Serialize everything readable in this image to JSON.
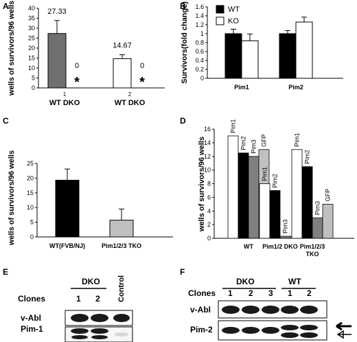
{
  "panels": {
    "A": "A",
    "B": "B",
    "C": "C",
    "D": "D",
    "E": "E",
    "F": "F"
  },
  "chart_data": [
    {
      "panel": "A",
      "type": "bar",
      "ylabel": "wells of survivors/96 wells",
      "ylim": [
        0,
        40
      ],
      "yticks": [
        0,
        5,
        10,
        15,
        20,
        25,
        30,
        35,
        40
      ],
      "group_numbers": [
        "1",
        "2"
      ],
      "group_labels": [
        "WT  DKO",
        "WT  DKO"
      ],
      "bars": [
        {
          "group": 0,
          "name": "WT",
          "value": 27.33,
          "error": 6.5,
          "label": "27.33",
          "color": "#707070"
        },
        {
          "group": 0,
          "name": "DKO",
          "value": 0,
          "error": 0,
          "label": "0",
          "marker": "*"
        },
        {
          "group": 1,
          "name": "WT",
          "value": 14.67,
          "error": 2.0,
          "label": "14.67",
          "color": "#ffffff"
        },
        {
          "group": 1,
          "name": "DKO",
          "value": 0,
          "error": 0,
          "label": "0",
          "marker": "*"
        }
      ]
    },
    {
      "panel": "B",
      "type": "bar",
      "ylabel": "Survivors(fold change)",
      "ylim": [
        0,
        1.6
      ],
      "yticks": [
        "0",
        "0.2",
        "0.4",
        "0.6",
        "0.8",
        "1",
        "1.2",
        "1.4",
        "1.6"
      ],
      "categories": [
        "Pim1",
        "Pim2"
      ],
      "series": [
        {
          "name": "WT",
          "values": [
            1.0,
            1.0
          ],
          "errors": [
            0.1,
            0.07
          ],
          "color": "#000000"
        },
        {
          "name": "KO",
          "values": [
            0.84,
            1.26
          ],
          "errors": [
            0.15,
            0.11
          ],
          "color": "#ffffff"
        }
      ],
      "legend": "top-left"
    },
    {
      "panel": "C",
      "type": "bar",
      "ylabel": "wells of survivors/96 wells",
      "ylim": [
        0,
        25
      ],
      "yticks": [
        0,
        5,
        10,
        15,
        20,
        25
      ],
      "categories": [
        "WT(FVB/NJ)",
        "Pim1/2/3 TKO"
      ],
      "values": [
        19.3,
        5.7
      ],
      "errors": [
        3.8,
        3.8
      ],
      "colors": [
        "#000000",
        "#c0c0c0"
      ]
    },
    {
      "panel": "D",
      "type": "bar",
      "ylabel": "wells of survivors/96 wells",
      "ylim": [
        0,
        16
      ],
      "yticks": [
        0,
        2,
        4,
        6,
        8,
        10,
        12,
        14,
        16
      ],
      "categories": [
        "WT",
        "Pim1/2 DKO",
        "Pim1/2/3 TKO"
      ],
      "series": [
        {
          "name": "Pim1",
          "values": [
            15,
            8,
            13
          ],
          "color": "#ffffff"
        },
        {
          "name": "Pim2",
          "values": [
            12.5,
            7,
            10.5
          ],
          "color": "#000000"
        },
        {
          "name": "Pim3",
          "values": [
            12,
            0.3,
            3
          ],
          "color": "#808080"
        },
        {
          "name": "GFP",
          "values": [
            13,
            0.3,
            5
          ],
          "color": "#c0c0c0"
        }
      ]
    }
  ],
  "blotE": {
    "group_label": "DKO",
    "control_label": "Control",
    "clones_label": "Clones",
    "lane_labels": [
      "1",
      "2"
    ],
    "rows": [
      "v-Abl",
      "Pim-1"
    ]
  },
  "blotF": {
    "group_labels": [
      "DKO",
      "WT"
    ],
    "clones_label": "Clones",
    "lane_labels": [
      "1",
      "2",
      "3",
      "1",
      "2"
    ],
    "rows": [
      "v-Abl",
      "Pim-2"
    ]
  }
}
